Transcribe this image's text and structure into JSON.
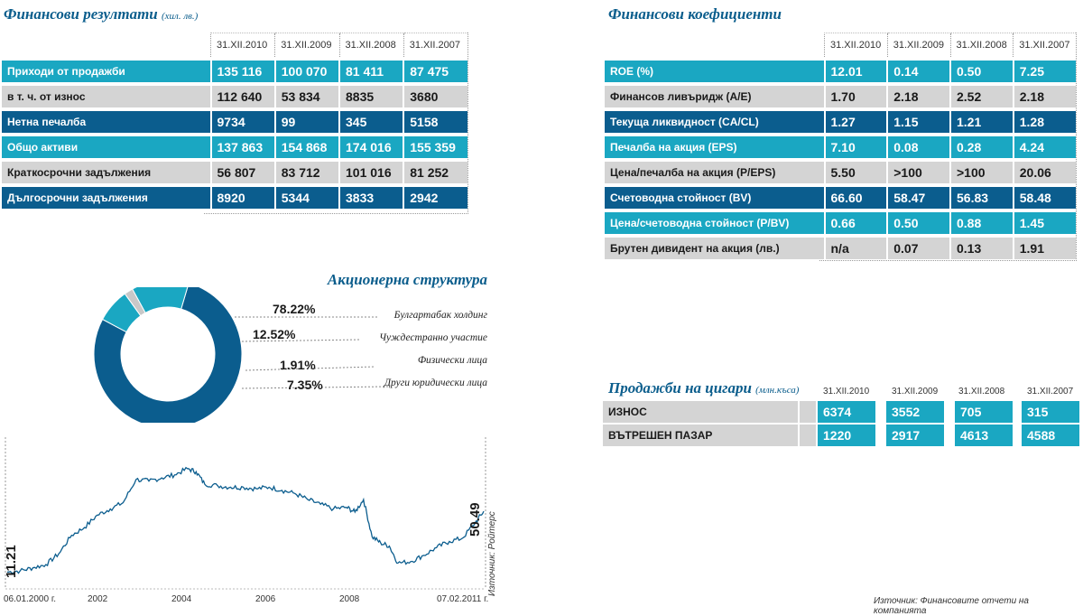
{
  "fin_results": {
    "title": "Финансови резултати",
    "unit": "(хил. лв.)",
    "columns": [
      "31.XII.2010",
      "31.XII.2009",
      "31.XII.2008",
      "31.XII.2007"
    ],
    "rows": [
      {
        "label": "Приходи от продажби",
        "values": [
          "135 116",
          "100 070",
          "81 411",
          "87 475"
        ],
        "style": "cyan"
      },
      {
        "label": "в т. ч. от износ",
        "values": [
          "112 640",
          "53 834",
          "8835",
          "3680"
        ],
        "style": "gray"
      },
      {
        "label": "Нетна печалба",
        "values": [
          "9734",
          "99",
          "345",
          "5158"
        ],
        "style": "navy"
      },
      {
        "label": "Общо активи",
        "values": [
          "137 863",
          "154 868",
          "174 016",
          "155 359"
        ],
        "style": "cyan"
      },
      {
        "label": "Краткосрочни задължения",
        "values": [
          "56 807",
          "83 712",
          "101 016",
          "81 252"
        ],
        "style": "gray"
      },
      {
        "label": "Дългосрочни задължения",
        "values": [
          "8920",
          "5344",
          "3833",
          "2942"
        ],
        "style": "navy"
      }
    ]
  },
  "fin_ratios": {
    "title": "Финансови коефициенти",
    "columns": [
      "31.XII.2010",
      "31.XII.2009",
      "31.XII.2008",
      "31.XII.2007"
    ],
    "rows": [
      {
        "label": "ROE (%)",
        "values": [
          "12.01",
          "0.14",
          "0.50",
          "7.25"
        ],
        "style": "cyan"
      },
      {
        "label": "Финансов ливъридж (A/E)",
        "values": [
          "1.70",
          "2.18",
          "2.52",
          "2.18"
        ],
        "style": "gray"
      },
      {
        "label": "Текуща ликвидност (CA/CL)",
        "values": [
          "1.27",
          "1.15",
          "1.21",
          "1.28"
        ],
        "style": "navy"
      },
      {
        "label": "Печалба на акция (EPS)",
        "values": [
          "7.10",
          "0.08",
          "0.28",
          "4.24"
        ],
        "style": "cyan"
      },
      {
        "label": "Цена/печалба на акция (P/EPS)",
        "values": [
          "5.50",
          ">100",
          ">100",
          "20.06"
        ],
        "style": "gray"
      },
      {
        "label": "Счетоводна стойност (BV)",
        "values": [
          "66.60",
          "58.47",
          "56.83",
          "58.48"
        ],
        "style": "navy"
      },
      {
        "label": "Цена/счетоводна стойност (P/BV)",
        "values": [
          "0.66",
          "0.50",
          "0.88",
          "1.45"
        ],
        "style": "cyan"
      },
      {
        "label": "Брутен дивидент на акция (лв.)",
        "values": [
          "n/a",
          "0.07",
          "0.13",
          "1.91"
        ],
        "style": "gray"
      }
    ]
  },
  "cig_sales": {
    "title": "Продажби на цигари",
    "unit": "(млн.къса)",
    "columns": [
      "31.XII.2010",
      "31.XII.2009",
      "31.XII.2008",
      "31.XII.2007"
    ],
    "rows": [
      {
        "label": "ИЗНОС",
        "values": [
          "6374",
          "3552",
          "705",
          "315"
        ]
      },
      {
        "label": "ВЪТРЕШЕН ПАЗАР",
        "values": [
          "1220",
          "2917",
          "4613",
          "4588"
        ]
      }
    ]
  },
  "source_bottom": "Източник: Финансовите отчети на компанията",
  "chart_data": [
    {
      "type": "pie",
      "title": "Акционерна структура",
      "categories": [
        "Булгартабак холдинг",
        "Чуждестранно участие",
        "Физически лица",
        "Други юридически лица"
      ],
      "values": [
        78.22,
        12.52,
        1.91,
        7.35
      ],
      "labels": [
        "78.22%",
        "12.52%",
        "1.91%",
        "7.35%"
      ],
      "colors": [
        "#0b5d8e",
        "#1aa7c2",
        "#c8c8c8",
        "#1aa7c2"
      ],
      "donut": true
    },
    {
      "type": "line",
      "x_start_label": "06.01.2000 г.",
      "x_end_label": "07.02.2011 г.",
      "x_ticks": [
        "2002",
        "2004",
        "2006",
        "2008"
      ],
      "start_value_label": "11.21",
      "end_value_label": "50.49",
      "source": "Източник: Ройтерс",
      "color": "#0b5d8e",
      "x": [
        2000.0,
        2000.3,
        2000.6,
        2000.9,
        2001.2,
        2001.5,
        2001.8,
        2002.1,
        2002.4,
        2002.7,
        2003.0,
        2003.3,
        2003.6,
        2003.9,
        2004.2,
        2004.4,
        2004.6,
        2004.9,
        2005.2,
        2005.5,
        2005.8,
        2006.1,
        2006.4,
        2006.7,
        2007.0,
        2007.3,
        2007.6,
        2007.9,
        2008.1,
        2008.3,
        2008.5,
        2008.7,
        2008.9,
        2009.1,
        2009.4,
        2009.7,
        2010.0,
        2010.3,
        2010.6,
        2010.9,
        2011.1
      ],
      "y": [
        11.21,
        12,
        14,
        16,
        23,
        35,
        40,
        48,
        52,
        56,
        71,
        70,
        72,
        74,
        78,
        76,
        68,
        67,
        66,
        66,
        65,
        66,
        64,
        62,
        58,
        55,
        52,
        53,
        50,
        58,
        34,
        30,
        28,
        17,
        18,
        22,
        27,
        31,
        33,
        43,
        50.49
      ]
    }
  ]
}
